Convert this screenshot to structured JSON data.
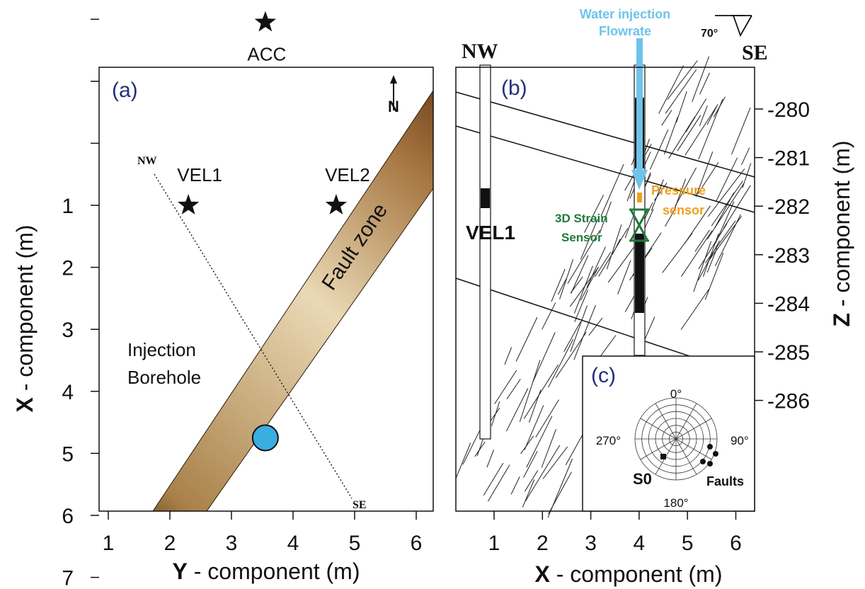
{
  "panel_a": {
    "letter": "(a)",
    "x_ticks": [
      "1",
      "2",
      "3",
      "4",
      "5",
      "6"
    ],
    "y_ticks": [
      "1",
      "2",
      "3",
      "4",
      "5",
      "6",
      "7"
    ],
    "x_axis_prefix": "Y",
    "x_axis_rest": " - component (m)",
    "y_axis_prefix": "X",
    "y_axis_rest": " - component (m)",
    "sensors": [
      {
        "name": "ACC",
        "x": 3.55,
        "y": -1.95
      },
      {
        "name": "VEL1",
        "x": 2.3,
        "y": 1.0
      },
      {
        "name": "VEL2",
        "x": 4.7,
        "y": 1.0
      }
    ],
    "fault_zone_label": "Fault zone",
    "injection_label_line1": "Injection",
    "injection_label_line2": "Borehole",
    "injection_point": {
      "x": 3.55,
      "y": 4.75
    },
    "profile_start_label": "NW",
    "profile_end_label": "SE",
    "north_label": "N"
  },
  "panel_b": {
    "letter": "(b)",
    "x_ticks": [
      "1",
      "2",
      "3",
      "4",
      "5",
      "6"
    ],
    "z_ticks": [
      "-280",
      "-281",
      "-282",
      "-283",
      "-284",
      "-285",
      "-286"
    ],
    "x_axis_prefix": "X",
    "x_axis_rest": " - component (m)",
    "z_axis_prefix": "Z",
    "z_axis_rest": " - component (m)",
    "nw_label": "NW",
    "se_label": "SE",
    "dip_label": "70°",
    "water_label_line1": "Water injection",
    "water_label_line2": "Flowrate",
    "pressure_label_line1": "Pressure",
    "pressure_label_line2": "sensor",
    "strain_label_line1": "3D Strain",
    "strain_label_line2": "Sensor",
    "vel1_label": "VEL1"
  },
  "panel_c": {
    "letter": "(c)",
    "angle_labels": [
      "0°",
      "90°",
      "180°",
      "270°"
    ],
    "s0_label": "S0",
    "faults_label": "Faults"
  },
  "colors": {
    "water": "#6ec3ea",
    "pressure": "#f0a020",
    "strain": "#1f7a3a",
    "injection": "#3aaee0",
    "panel_letter": "#22307a"
  }
}
